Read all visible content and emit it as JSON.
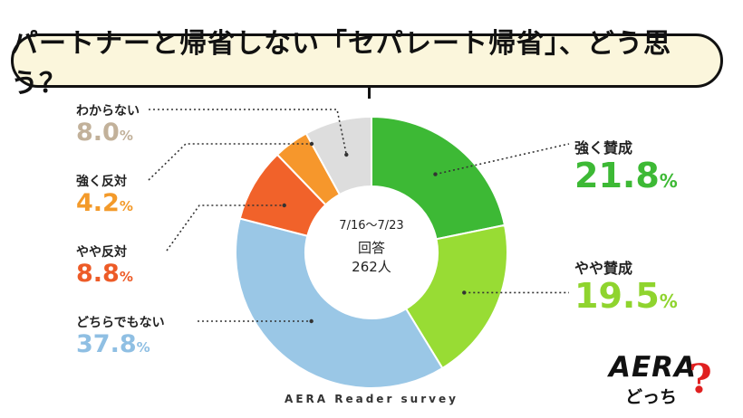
{
  "header": {
    "title": "パートナーと帰省しない「セパレート帰省」、どう思う？"
  },
  "center": {
    "period": "7/16〜7/23",
    "answer_label": "回答",
    "count": "262人"
  },
  "footer": {
    "source": "AERA Reader survey"
  },
  "logo": {
    "brand": "AERA",
    "sub": "どっち",
    "mark": "?"
  },
  "unit": "%",
  "chart_data": {
    "type": "pie",
    "donut": true,
    "categories": [
      "強く賛成",
      "やや賛成",
      "どちらでもない",
      "やや反対",
      "強く反対",
      "わからない"
    ],
    "values": [
      21.8,
      19.5,
      37.8,
      8.8,
      4.2,
      8.0
    ],
    "value_labels": [
      "21.8",
      "19.5",
      "37.8",
      "8.8",
      "4.2",
      "8.0"
    ],
    "colors": [
      "#3db935",
      "#98dc34",
      "#9ac7e6",
      "#f1622a",
      "#f6972c",
      "#dddddd"
    ],
    "label_colors": [
      "#3db935",
      "#8fd42e",
      "#8fbfe3",
      "#ed5b27",
      "#f39a2a",
      "#c2b19a"
    ],
    "start": "top",
    "direction": "clockwise"
  }
}
